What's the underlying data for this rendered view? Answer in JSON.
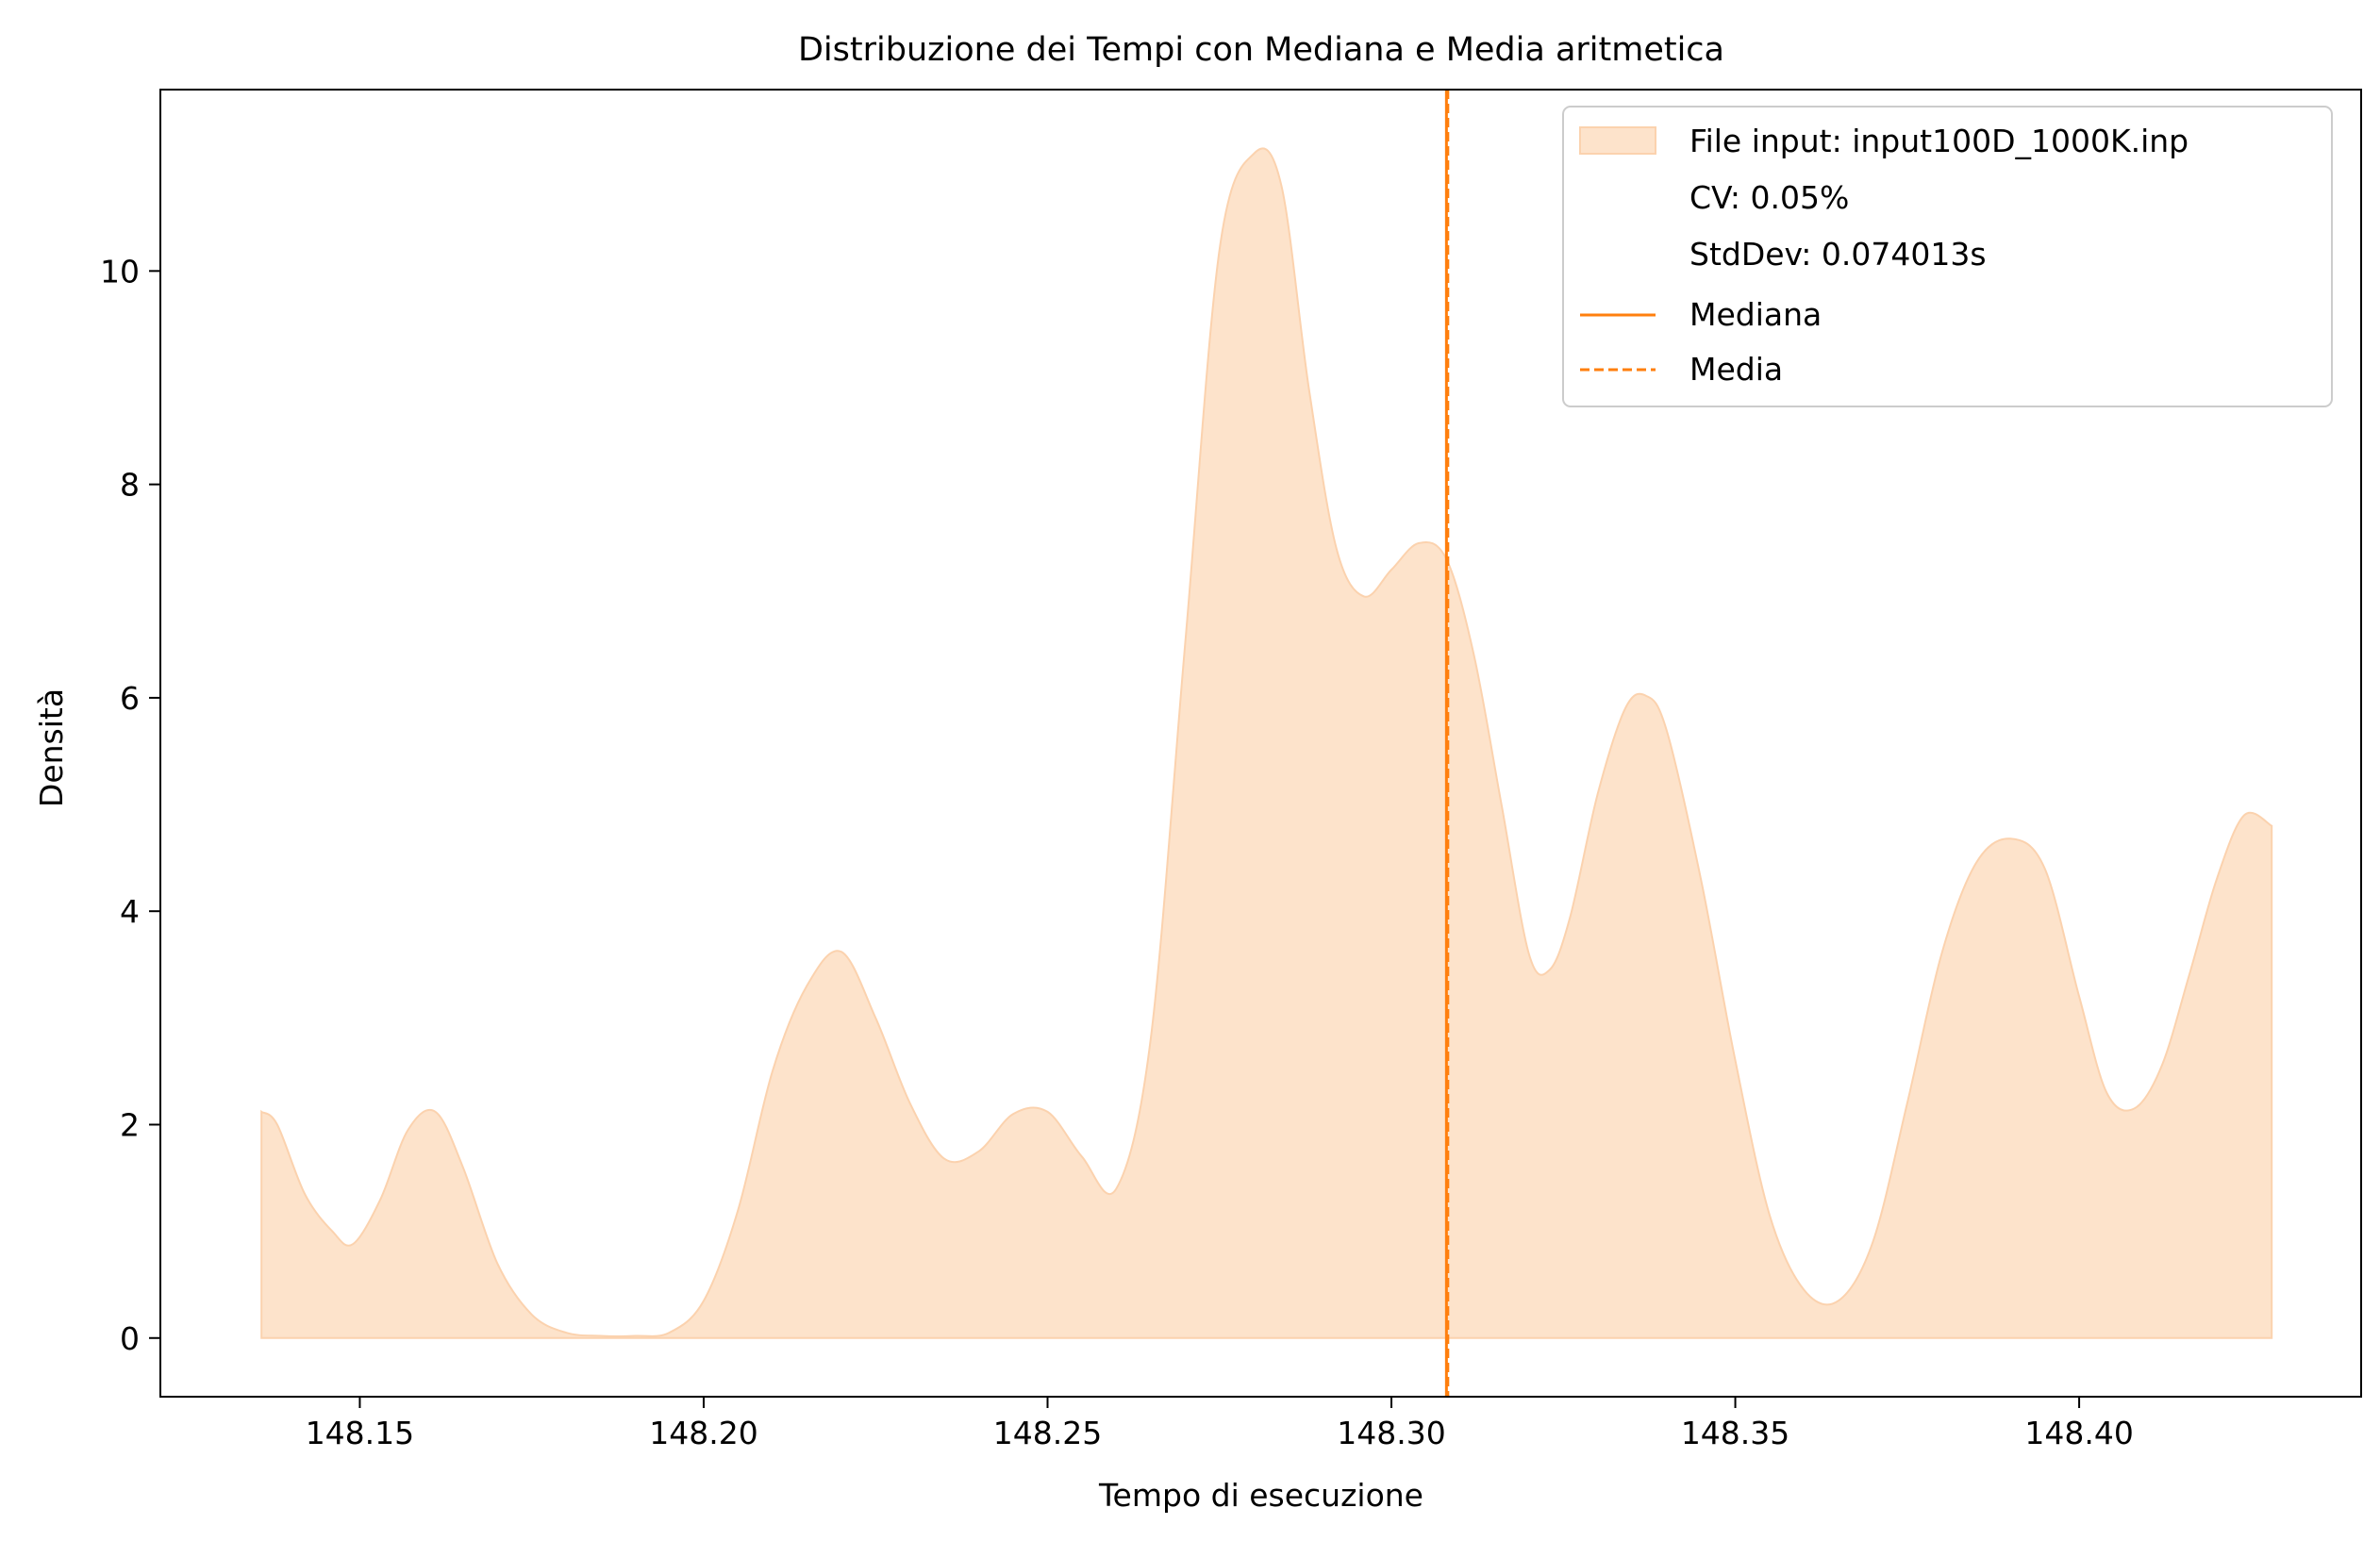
{
  "chart_data": {
    "type": "area",
    "title": "Distribuzione dei Tempi con Mediana e Media aritmetica",
    "xlabel": "Tempo di esecuzione",
    "ylabel": "Densità",
    "xlim": [
      148.121,
      148.441
    ],
    "ylim": [
      -0.55,
      11.7
    ],
    "x_ticks": [
      "148.15",
      "148.20",
      "148.25",
      "148.30",
      "148.35",
      "148.40"
    ],
    "x_tick_values": [
      148.15,
      148.2,
      148.25,
      148.3,
      148.35,
      148.4
    ],
    "y_ticks": [
      "0",
      "2",
      "4",
      "6",
      "8",
      "10"
    ],
    "y_tick_values": [
      0,
      2,
      4,
      6,
      8,
      10
    ],
    "grid": false,
    "legend_position": "top-right",
    "legend": [
      {
        "label": "File input: input100D_1000K.inp",
        "kind": "patch"
      },
      {
        "label": "CV: 0.05%",
        "kind": "none"
      },
      {
        "label": "StdDev: 0.074013s",
        "kind": "none"
      },
      {
        "label": "Mediana",
        "kind": "solid-line"
      },
      {
        "label": "Media",
        "kind": "dashed-line"
      }
    ],
    "series": [
      {
        "name": "File input: input100D_1000K.inp",
        "x": [
          148.1357,
          148.138,
          148.142,
          148.146,
          148.149,
          148.153,
          148.157,
          148.161,
          148.165,
          148.17,
          148.175,
          148.18,
          148.185,
          148.19,
          148.195,
          148.2,
          148.205,
          148.21,
          148.215,
          148.22,
          148.225,
          148.23,
          148.235,
          148.24,
          148.245,
          148.25,
          148.255,
          148.26,
          148.265,
          148.27,
          148.275,
          148.28,
          148.284,
          148.288,
          148.292,
          148.296,
          148.3,
          148.304,
          148.308,
          148.312,
          148.316,
          148.32,
          148.323,
          148.326,
          148.33,
          148.334,
          148.337,
          148.34,
          148.345,
          148.35,
          148.355,
          148.36,
          148.365,
          148.37,
          148.375,
          148.38,
          148.385,
          148.39,
          148.395,
          148.4,
          148.404,
          148.408,
          148.412,
          148.416,
          148.42,
          148.424,
          148.428
        ],
        "y": [
          2.12,
          2.0,
          1.35,
          1.0,
          0.88,
          1.3,
          1.95,
          2.12,
          1.6,
          0.7,
          0.22,
          0.05,
          0.02,
          0.02,
          0.05,
          0.35,
          1.2,
          2.5,
          3.3,
          3.62,
          3.0,
          2.2,
          1.68,
          1.75,
          2.1,
          2.12,
          1.7,
          1.4,
          2.8,
          6.5,
          10.2,
          11.1,
          10.8,
          8.9,
          7.4,
          6.95,
          7.2,
          7.45,
          7.3,
          6.4,
          5.0,
          3.6,
          3.45,
          3.95,
          5.1,
          5.9,
          6.02,
          5.7,
          4.3,
          2.6,
          1.15,
          0.45,
          0.35,
          0.9,
          2.2,
          3.6,
          4.45,
          4.68,
          4.4,
          3.2,
          2.3,
          2.15,
          2.55,
          3.4,
          4.3,
          4.9,
          4.8
        ],
        "color": "#fde3cb",
        "edge_color": "#fbd2ae"
      }
    ],
    "median": {
      "x": 148.308,
      "label": "Mediana",
      "color": "#ff7f0e",
      "style": "solid"
    },
    "mean": {
      "x": 148.3082,
      "label": "Media",
      "color": "#ff7f0e",
      "style": "dashed"
    }
  }
}
